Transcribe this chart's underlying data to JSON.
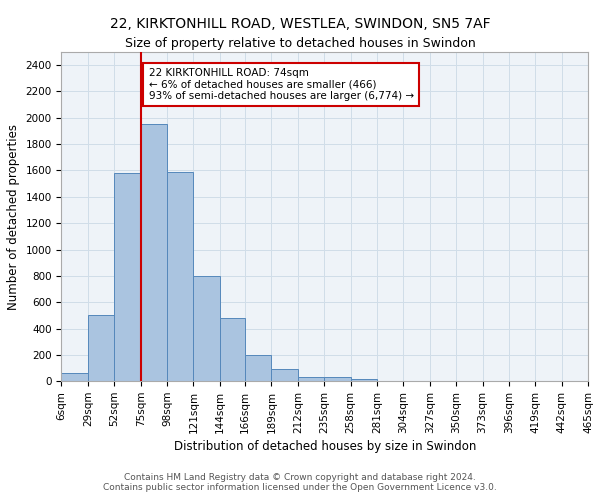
{
  "title1": "22, KIRKTONHILL ROAD, WESTLEA, SWINDON, SN5 7AF",
  "title2": "Size of property relative to detached houses in Swindon",
  "xlabel": "Distribution of detached houses by size in Swindon",
  "ylabel": "Number of detached properties",
  "footer1": "Contains HM Land Registry data © Crown copyright and database right 2024.",
  "footer2": "Contains public sector information licensed under the Open Government Licence v3.0.",
  "bar_heights": [
    60,
    500,
    1580,
    1950,
    1590,
    800,
    480,
    200,
    90,
    35,
    30,
    20,
    0,
    0,
    0,
    0,
    0,
    0,
    0,
    0
  ],
  "bin_edges": [
    6,
    29,
    52,
    75,
    98,
    121,
    144,
    166,
    189,
    212,
    235,
    258,
    281,
    304,
    327,
    350,
    373,
    396,
    419,
    442,
    465
  ],
  "bar_color": "#aac4e0",
  "bar_edge_color": "#5588bb",
  "grid_color": "#d0dde8",
  "bg_color": "#eef3f8",
  "vline_x": 75,
  "vline_color": "#cc0000",
  "annotation_text": "22 KIRKTONHILL ROAD: 74sqm\n← 6% of detached houses are smaller (466)\n93% of semi-detached houses are larger (6,774) →",
  "annotation_box_color": "#cc0000",
  "annotation_text_color": "#000000",
  "ylim": [
    0,
    2500
  ],
  "yticks": [
    0,
    200,
    400,
    600,
    800,
    1000,
    1200,
    1400,
    1600,
    1800,
    2000,
    2200,
    2400
  ],
  "tick_label_fontsize": 7.5,
  "title_fontsize1": 10,
  "title_fontsize2": 9,
  "xlabel_fontsize": 8.5,
  "ylabel_fontsize": 8.5,
  "footer_fontsize": 6.5
}
